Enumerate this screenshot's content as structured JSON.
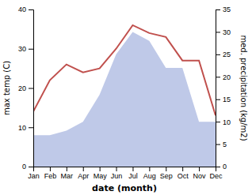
{
  "chart_data": {
    "type": "line",
    "categories": [
      "Jan",
      "Feb",
      "Mar",
      "Apr",
      "May",
      "Jun",
      "Jul",
      "Aug",
      "Sep",
      "Oct",
      "Nov",
      "Dec"
    ],
    "xlabel": "date (month)",
    "ylabel": "max temp (C)",
    "y2label": "med. precipitation (kg/m2)",
    "ylim": [
      0,
      40
    ],
    "yticks": [
      0,
      10,
      20,
      30,
      40
    ],
    "y2lim": [
      0,
      35
    ],
    "y2ticks": [
      0,
      5,
      10,
      15,
      20,
      25,
      30,
      35
    ],
    "series": [
      {
        "type": "line",
        "color": "#c0504d",
        "values": [
          14,
          22,
          26,
          24,
          25,
          30,
          36,
          34,
          33,
          27,
          27,
          13
        ]
      },
      {
        "type": "area",
        "axis": "y2",
        "color": "#bfc9e8",
        "values": [
          7,
          7,
          8,
          10,
          16,
          25,
          30,
          28,
          22,
          22,
          10,
          10
        ]
      }
    ]
  }
}
